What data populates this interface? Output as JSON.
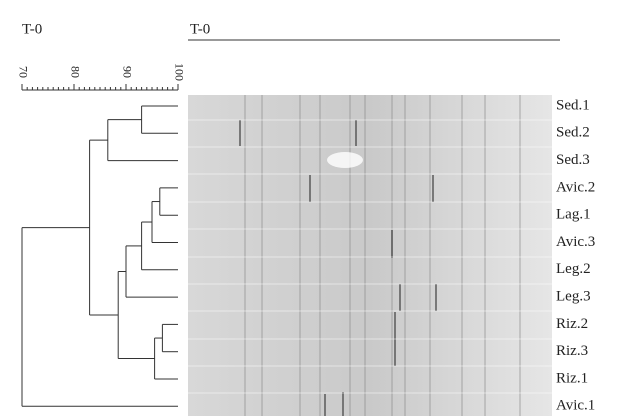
{
  "chart_data": {
    "type": "dendrogram",
    "left_title": "T-0",
    "gel_title": "T-0",
    "xlim": [
      70,
      100
    ],
    "xticks": [
      70,
      80,
      90,
      100
    ],
    "leaves": [
      "Sed.1",
      "Sed.2",
      "Sed.3",
      "Avic.2",
      "Lag.1",
      "Avic.3",
      "Leg.2",
      "Leg.3",
      "Riz.2",
      "Riz.3",
      "Riz.1",
      "Avic.1"
    ],
    "merges": [
      {
        "left": 0,
        "right": 1,
        "similarity": 93
      },
      {
        "left": 12,
        "right": 2,
        "similarity": 86.5
      },
      {
        "left": 3,
        "right": 4,
        "similarity": 96.5
      },
      {
        "left": 14,
        "right": 5,
        "similarity": 95
      },
      {
        "left": 15,
        "right": 6,
        "similarity": 93
      },
      {
        "left": 16,
        "right": 7,
        "similarity": 90
      },
      {
        "left": 8,
        "right": 9,
        "similarity": 97
      },
      {
        "left": 18,
        "right": 10,
        "similarity": 95.5
      },
      {
        "left": 17,
        "right": 19,
        "similarity": 88.5
      },
      {
        "left": 13,
        "right": 20,
        "similarity": 83
      },
      {
        "left": 21,
        "right": 11,
        "similarity": 70
      }
    ]
  }
}
